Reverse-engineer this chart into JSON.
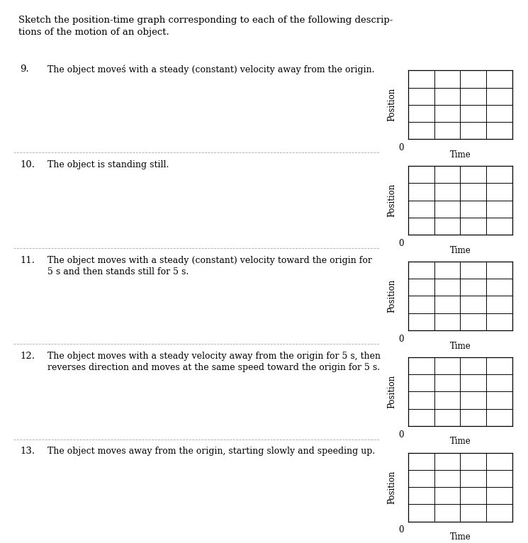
{
  "title_text": "Sketch the position-time graph corresponding to each of the following descrip-\ntions of the motion of an object.",
  "problems": [
    {
      "number": "9.",
      "description": "The object moveś with a steady (constant) velocity away from the origin.",
      "ylabel": "Position",
      "xlabel": "Time"
    },
    {
      "number": "10.",
      "description": "The object is standing still.",
      "ylabel": "Position",
      "xlabel": "Time"
    },
    {
      "number": "11.",
      "description": "The object moves with a steady (constant) velocity toward the origin for\n5 s and then stands still for 5 s.",
      "ylabel": "Position",
      "xlabel": "Time"
    },
    {
      "number": "12.",
      "description": "The object moves with a steady velocity away from the origin for 5 s, then\nreverses direction and moves at the same speed toward the origin for 5 s.",
      "ylabel": "Position",
      "xlabel": "Time"
    },
    {
      "number": "13.",
      "description": "The object moves away from the origin, starting slowly and speeding up.",
      "ylabel": "Position",
      "xlabel": "Time"
    }
  ],
  "grid_cols": 4,
  "grid_rows": 4,
  "box_color": "#000000",
  "grid_color": "#000000",
  "bg_color": "#ffffff",
  "text_color": "#000000",
  "font_size_title": 9.5,
  "font_size_label": 8.5,
  "font_size_number": 9.5,
  "font_size_desc": 9.0,
  "font_size_axis": 8.5,
  "zero_label": "0",
  "divider_color": "#aaaaaa",
  "divider_style": "--",
  "divider_linewidth": 0.6
}
